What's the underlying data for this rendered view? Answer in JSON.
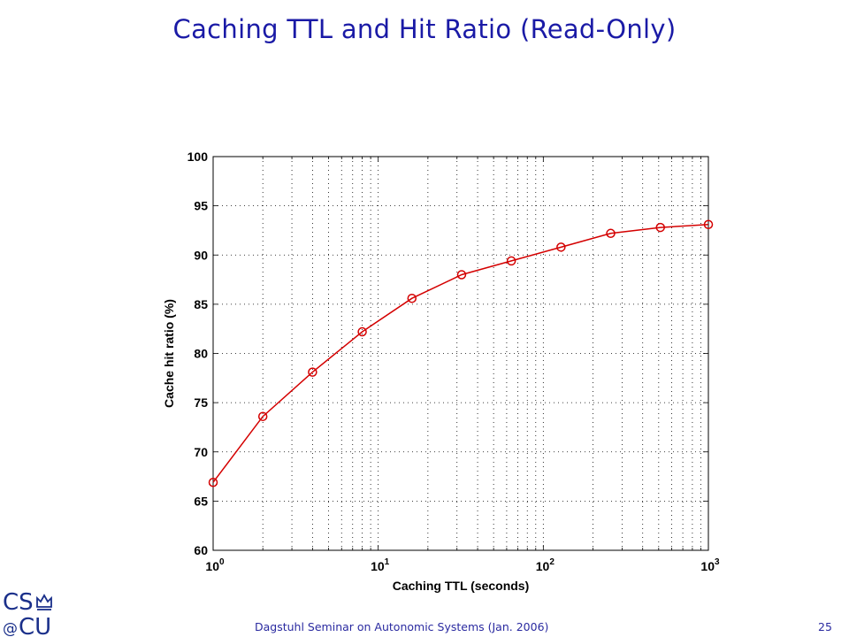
{
  "slide": {
    "title": "Caching TTL and Hit Ratio (Read-Only)",
    "footer": "Dagstuhl Seminar on Autonomic Systems (Jan. 2006)",
    "page_number": "25",
    "logo_text": "CS@CU"
  },
  "colors": {
    "title": "#1a1aa6",
    "series": "#d40000",
    "footer": "#2a2aa0"
  },
  "chart_data": {
    "type": "line",
    "title": "",
    "xlabel": "Caching TTL (seconds)",
    "ylabel": "Cache hit ratio (%)",
    "xscale": "log",
    "xlim": [
      1,
      1000
    ],
    "ylim": [
      60,
      100
    ],
    "xticks": [
      1,
      10,
      100,
      1000
    ],
    "xtick_labels": [
      {
        "base": "10",
        "exp": "0"
      },
      {
        "base": "10",
        "exp": "1"
      },
      {
        "base": "10",
        "exp": "2"
      },
      {
        "base": "10",
        "exp": "3"
      }
    ],
    "yticks": [
      "60",
      "65",
      "70",
      "75",
      "80",
      "85",
      "90",
      "95",
      "100"
    ],
    "grid": true,
    "grid_style": "dotted",
    "marker": "circle",
    "series": [
      {
        "x": [
          1,
          2,
          4,
          8,
          16,
          32,
          64,
          128,
          256,
          512,
          1000
        ],
        "y": [
          66.9,
          73.6,
          78.1,
          82.2,
          85.6,
          88.0,
          89.4,
          90.8,
          92.2,
          92.8,
          93.1
        ]
      }
    ]
  }
}
